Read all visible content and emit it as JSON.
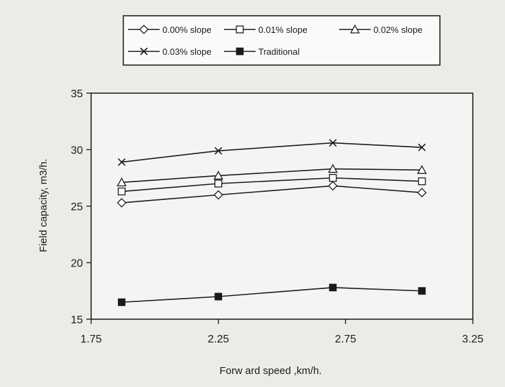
{
  "chart_data": {
    "type": "line",
    "xlabel": "Forw ard speed ,km/h.",
    "ylabel": "Field capacity, m3/h.",
    "xlim": [
      1.75,
      3.25
    ],
    "ylim": [
      15,
      35
    ],
    "xticks": [
      1.75,
      2.25,
      2.75,
      3.25
    ],
    "yticks": [
      15,
      20,
      25,
      30,
      35
    ],
    "xtick_labels": [
      "1.75",
      "2.25",
      "2.75",
      "3.25"
    ],
    "ytick_labels": [
      "15",
      "20",
      "25",
      "30",
      "35"
    ],
    "grid": false,
    "legend_position": "top",
    "x": [
      1.87,
      2.25,
      2.7,
      3.05
    ],
    "series": [
      {
        "name": "0.00% slope",
        "marker": "diamond",
        "values": [
          25.3,
          26.0,
          26.8,
          26.2
        ]
      },
      {
        "name": "0.01% slope",
        "marker": "square-open",
        "values": [
          26.3,
          27.0,
          27.5,
          27.2
        ]
      },
      {
        "name": "0.02% slope",
        "marker": "triangle",
        "values": [
          27.1,
          27.7,
          28.3,
          28.2
        ]
      },
      {
        "name": "0.03% slope",
        "marker": "x",
        "values": [
          28.9,
          29.9,
          30.6,
          30.2
        ]
      },
      {
        "name": "Traditional",
        "marker": "square-filled",
        "values": [
          16.5,
          17.0,
          17.8,
          17.5
        ]
      }
    ]
  }
}
